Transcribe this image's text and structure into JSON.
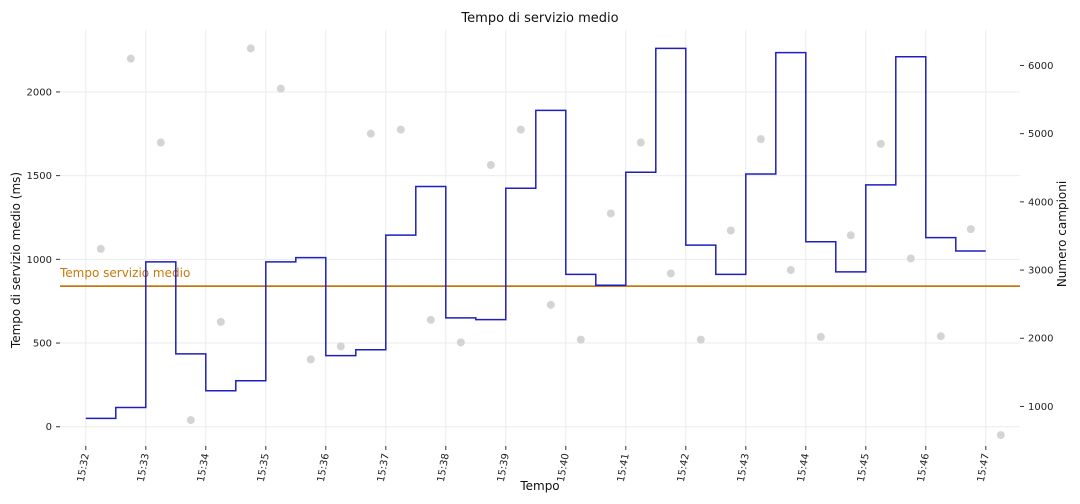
{
  "chart_data": {
    "type": "line",
    "title": "Tempo di servizio medio",
    "xlabel": "Tempo",
    "ylabel": "Tempo di servizio medio (ms)",
    "y2label": "Numero campioni",
    "x_tick_labels": [
      "15:32",
      "15:33",
      "15:34",
      "15:35",
      "15:36",
      "15:37",
      "15:38",
      "15:39",
      "15:40",
      "15:41",
      "15:42",
      "15:43",
      "15:44",
      "15:45",
      "15:46",
      "15:47"
    ],
    "xlim_minutes": [
      -0.43,
      15.57
    ],
    "ylim": [
      -115,
      2370
    ],
    "y_ticks": [
      0,
      500,
      1000,
      1500,
      2000
    ],
    "y2lim": [
      420,
      6520
    ],
    "y2_ticks": [
      1000,
      2000,
      3000,
      4000,
      5000,
      6000
    ],
    "grid": true,
    "colors": {
      "step": "#1f1fbf",
      "reference": "#c8780f",
      "scatter": "#d4d4d4",
      "grid": "#ebebeb"
    },
    "reference_line": {
      "name": "Tempo servizio medio",
      "value": 840
    },
    "series": [
      {
        "kind": "step",
        "axis": "left",
        "x_minutes": [
          0.0,
          0.5,
          1.0,
          1.5,
          2.0,
          2.5,
          3.0,
          3.5,
          4.0,
          4.5,
          5.0,
          5.5,
          6.0,
          6.5,
          7.0,
          7.5,
          8.0,
          8.5,
          9.0,
          9.5,
          10.0,
          10.5,
          11.0,
          11.5,
          12.0,
          12.5,
          13.0,
          13.5,
          14.0,
          14.5,
          15.0
        ],
        "values": [
          50,
          115,
          985,
          435,
          215,
          275,
          985,
          1010,
          425,
          460,
          1145,
          1435,
          650,
          640,
          1425,
          1890,
          910,
          845,
          1520,
          2260,
          1085,
          910,
          1510,
          2235,
          1105,
          925,
          1445,
          2210,
          1130,
          1050,
          1050
        ]
      },
      {
        "kind": "scatter",
        "axis": "right",
        "x_minutes": [
          0.25,
          0.75,
          1.25,
          1.75,
          2.25,
          2.75,
          3.25,
          3.75,
          4.25,
          4.75,
          5.25,
          5.75,
          6.25,
          6.75,
          7.25,
          7.75,
          8.25,
          8.75,
          9.25,
          9.75,
          10.25,
          10.75,
          11.25,
          11.75,
          12.25,
          12.75,
          13.25,
          13.75,
          14.25,
          14.75,
          15.25
        ],
        "values": [
          3310,
          6100,
          4870,
          800,
          2240,
          6250,
          5660,
          1690,
          1880,
          5000,
          5060,
          2270,
          1940,
          4540,
          5060,
          2490,
          1980,
          3830,
          4870,
          2950,
          1980,
          3580,
          4920,
          3000,
          2020,
          3510,
          4850,
          3170,
          2030,
          3600,
          580
        ]
      }
    ]
  }
}
